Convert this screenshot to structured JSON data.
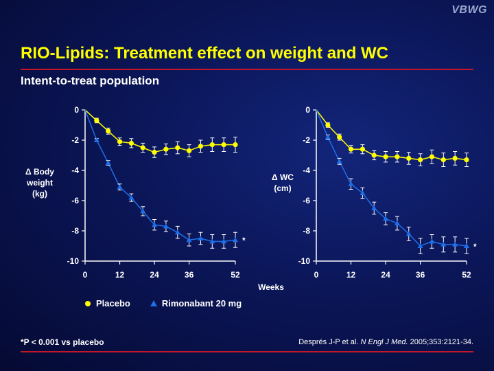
{
  "logo": "VBWG",
  "title": "RIO-Lipids: Treatment effect on weight and WC",
  "subtitle": "Intent-to-treat population",
  "footnote": "*P < 0.001 vs placebo",
  "citation": {
    "authors": "Després J-P et al.",
    "journal": "N Engl J Med.",
    "details": " 2005;353:2121-34."
  },
  "colors": {
    "placebo": "#ffff00",
    "rimonabant": "#1e6fe8",
    "title": "#ffff00",
    "rule": "#c0182a"
  },
  "chart_data": [
    {
      "type": "line",
      "ylabel": [
        "Δ Body",
        "weight",
        "(kg)"
      ],
      "xlabel": "Weeks",
      "xlim": [
        0,
        52
      ],
      "ylim": [
        -10,
        0
      ],
      "xticks": [
        "0",
        "12",
        "24",
        "36",
        "52"
      ],
      "yticks": [
        "0",
        "-2",
        "-4",
        "-6",
        "-8",
        "-10"
      ],
      "annotation": "*",
      "series": [
        {
          "name": "Placebo",
          "marker": "circle",
          "x": [
            0,
            4,
            8,
            12,
            16,
            20,
            24,
            28,
            32,
            36,
            40,
            44,
            48,
            52
          ],
          "y": [
            0,
            -0.7,
            -1.4,
            -2.1,
            -2.2,
            -2.5,
            -2.8,
            -2.6,
            -2.5,
            -2.7,
            -2.4,
            -2.3,
            -2.3,
            -2.3
          ],
          "err": [
            0,
            0.15,
            0.2,
            0.25,
            0.3,
            0.3,
            0.35,
            0.35,
            0.4,
            0.4,
            0.4,
            0.45,
            0.45,
            0.5
          ]
        },
        {
          "name": "Rimonabant 20 mg",
          "marker": "triangle",
          "x": [
            0,
            4,
            8,
            12,
            16,
            20,
            24,
            28,
            32,
            36,
            40,
            44,
            48,
            52
          ],
          "y": [
            0,
            -2.0,
            -3.5,
            -5.1,
            -5.8,
            -6.7,
            -7.6,
            -7.7,
            -8.1,
            -8.6,
            -8.5,
            -8.7,
            -8.7,
            -8.6
          ],
          "err": [
            0,
            0.1,
            0.15,
            0.2,
            0.25,
            0.3,
            0.35,
            0.35,
            0.4,
            0.4,
            0.4,
            0.45,
            0.45,
            0.5
          ]
        }
      ]
    },
    {
      "type": "line",
      "ylabel": [
        "Δ WC",
        "(cm)"
      ],
      "xlabel": "Weeks",
      "xlim": [
        0,
        52
      ],
      "ylim": [
        -10,
        0
      ],
      "xticks": [
        "0",
        "12",
        "24",
        "36",
        "52"
      ],
      "yticks": [
        "0",
        "-2",
        "-4",
        "-6",
        "-8",
        "-10"
      ],
      "annotation": "*",
      "series": [
        {
          "name": "Placebo",
          "marker": "circle",
          "x": [
            0,
            4,
            8,
            12,
            16,
            20,
            24,
            28,
            32,
            36,
            40,
            44,
            48,
            52
          ],
          "y": [
            0,
            -1.0,
            -1.8,
            -2.6,
            -2.6,
            -3.0,
            -3.1,
            -3.1,
            -3.2,
            -3.3,
            -3.1,
            -3.3,
            -3.2,
            -3.3
          ],
          "err": [
            0,
            0.15,
            0.2,
            0.25,
            0.3,
            0.3,
            0.35,
            0.35,
            0.4,
            0.4,
            0.45,
            0.45,
            0.45,
            0.45
          ]
        },
        {
          "name": "Rimonabant 20 mg",
          "marker": "triangle",
          "x": [
            0,
            4,
            8,
            12,
            16,
            20,
            24,
            28,
            32,
            36,
            40,
            44,
            48,
            52
          ],
          "y": [
            0,
            -1.8,
            -3.4,
            -4.9,
            -5.5,
            -6.5,
            -7.2,
            -7.5,
            -8.2,
            -9.0,
            -8.7,
            -8.9,
            -8.9,
            -9.0
          ],
          "err": [
            0,
            0.15,
            0.2,
            0.35,
            0.35,
            0.4,
            0.4,
            0.45,
            0.45,
            0.5,
            0.45,
            0.5,
            0.5,
            0.5
          ]
        }
      ]
    }
  ],
  "legend": [
    {
      "label": "Placebo",
      "marker": "circle"
    },
    {
      "label": "Rimonabant 20 mg",
      "marker": "triangle"
    }
  ]
}
